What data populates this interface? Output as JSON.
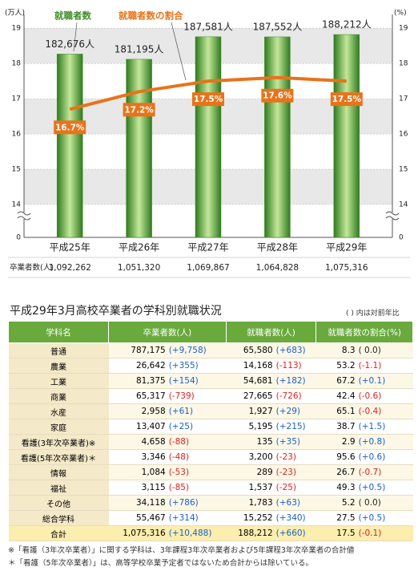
{
  "chart_data": {
    "type": "bar",
    "ylabel": "(万人)",
    "y2label": "(%)",
    "categories": [
      "平成25年",
      "平成26年",
      "平成27年",
      "平成28年",
      "平成29年"
    ],
    "series": [
      {
        "name": "就職者数",
        "type": "bar",
        "color": "#3f8f28",
        "values": [
          18.2676,
          18.1195,
          18.7581,
          18.7552,
          18.8212
        ],
        "value_labels": [
          "182,676人",
          "181,195人",
          "187,581人",
          "187,552人",
          "188,212人"
        ]
      },
      {
        "name": "就職者数の割合",
        "type": "line",
        "axis": "y2",
        "color": "#e8731a",
        "values": [
          16.7,
          17.2,
          17.5,
          17.6,
          17.5
        ],
        "value_labels": [
          "16.7%",
          "17.2%",
          "17.5%",
          "17.6%",
          "17.5%"
        ]
      }
    ],
    "ylim": [
      0,
      19.3
    ],
    "yticks": [
      0,
      14,
      15,
      16,
      17,
      18,
      19
    ],
    "y2lim": [
      0,
      19.3
    ],
    "y2ticks": [
      0,
      14,
      15,
      16,
      17,
      18,
      19
    ],
    "grid": true
  },
  "graduates": {
    "label": "卒業者数(人)",
    "values": [
      "1,092,262",
      "1,051,320",
      "1,069,867",
      "1,064,828",
      "1,075,316"
    ]
  },
  "table": {
    "title": "平成29年3月高校卒業者の学科別就職状況",
    "note": "( ) 内は対前年比",
    "columns": [
      "学科名",
      "卒業者数(人)",
      "就職者数(人)",
      "就職者数の割合(%)"
    ],
    "colors": {
      "increase": "#1a5fd0",
      "decrease": "#e02020"
    },
    "rows": [
      [
        "普通",
        "787,175",
        "(+9,758)",
        "65,580",
        "(+683)",
        "8.3",
        "( 0.0)"
      ],
      [
        "農業",
        "26,642",
        "(+355)",
        "14,168",
        "(-113)",
        "53.2",
        "(-1.1)"
      ],
      [
        "工業",
        "81,375",
        "(+154)",
        "54,681",
        "(+182)",
        "67.2",
        "(+0.1)"
      ],
      [
        "商業",
        "65,317",
        "(-739)",
        "27,665",
        "(-726)",
        "42.4",
        "(-0.6)"
      ],
      [
        "水産",
        "2,958",
        "(+61)",
        "1,927",
        "(+29)",
        "65.1",
        "(-0.4)"
      ],
      [
        "家庭",
        "13,407",
        "(+25)",
        "5,195",
        "(+215)",
        "38.7",
        "(+1.5)"
      ],
      [
        "看護(3年次卒業者)※",
        "4,658",
        "(-88)",
        "135",
        "(+35)",
        "2.9",
        "(+0.8)"
      ],
      [
        "看護(5年次卒業者)＊",
        "3,346",
        "(-48)",
        "3,200",
        "(-23)",
        "95.6",
        "(+0.6)"
      ],
      [
        "情報",
        "1,084",
        "(-53)",
        "289",
        "(-23)",
        "26.7",
        "(-0.7)"
      ],
      [
        "福祉",
        "3,115",
        "(-85)",
        "1,537",
        "(-25)",
        "49.3",
        "(+0.5)"
      ],
      [
        "その他",
        "34,118",
        "(+786)",
        "1,783",
        "(+63)",
        "5.2",
        "( 0.0)"
      ],
      [
        "総合学科",
        "55,467",
        "(+314)",
        "15,252",
        "(+340)",
        "27.5",
        "(+0.5)"
      ],
      [
        "合計",
        "1,075,316",
        "(+10,488)",
        "188,212",
        "(+660)",
        "17.5",
        "(-0.1)"
      ]
    ],
    "footnotes": [
      "※「看護（3年次卒業者）」に関する学科は、3年課程3年次卒業者および5年課程3年次卒業者の合計値",
      "＊「看護（5年次卒業者）」は、高等学校卒業予定者ではないため合計からは除いている。"
    ]
  }
}
